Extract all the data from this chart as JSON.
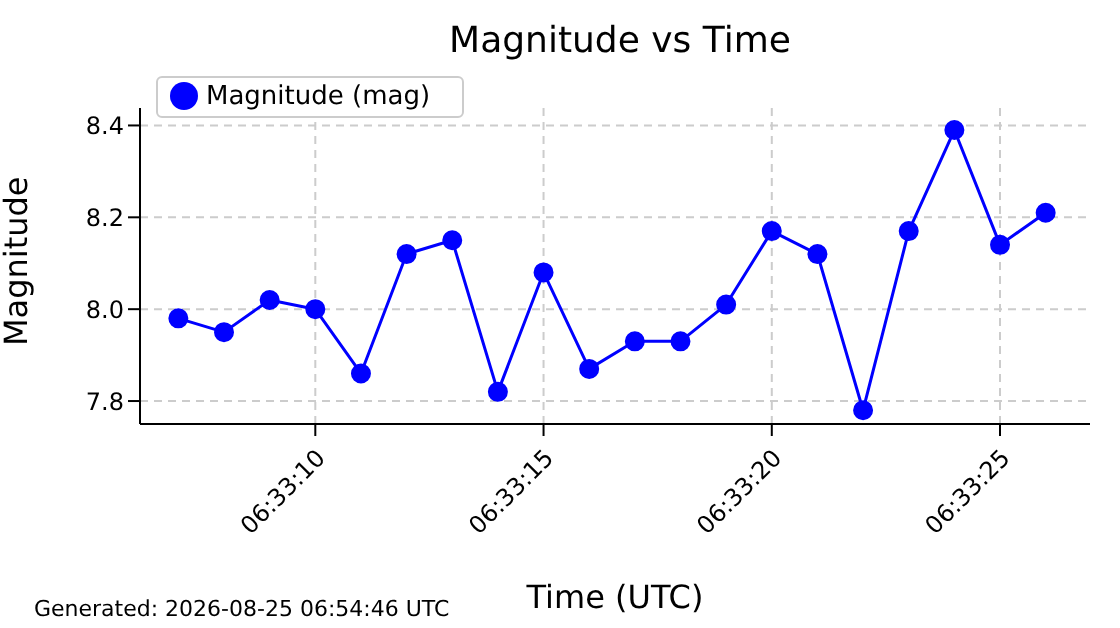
{
  "chart_data": {
    "type": "line",
    "title": "Magnitude vs Time",
    "xlabel": "Time (UTC)",
    "ylabel": "Magnitude",
    "x": [
      6.5519444,
      6.5522222,
      6.5525,
      6.5527778,
      6.5530556,
      6.5533333,
      6.5536111,
      6.5538889,
      6.5541667,
      6.5544444,
      6.5547222,
      6.555,
      6.5552778,
      6.5555556,
      6.5558333,
      6.5561111,
      6.5563889,
      6.5566667,
      6.5569444,
      6.5572222
    ],
    "series": [
      {
        "name": "Magnitude (mag)",
        "color": "#0000ff",
        "values": [
          7.98,
          7.95,
          8.02,
          8.0,
          7.86,
          8.12,
          8.15,
          7.82,
          8.08,
          7.87,
          7.93,
          7.93,
          8.01,
          8.17,
          8.12,
          7.78,
          8.17,
          8.39,
          8.14,
          8.21
        ]
      }
    ],
    "xlim": [
      6.551711,
      6.557492
    ],
    "xticks": [
      {
        "value": 6.5527778,
        "label": "06:33:10"
      },
      {
        "value": 6.5541667,
        "label": "06:33:15"
      },
      {
        "value": 6.5555556,
        "label": "06:33:20"
      },
      {
        "value": 6.5569444,
        "label": "06:33:25"
      }
    ],
    "ylim": [
      7.75,
      8.438
    ],
    "yticks": [
      {
        "value": 7.8,
        "label": "7.8"
      },
      {
        "value": 8,
        "label": "8.0"
      },
      {
        "value": 8.2,
        "label": "8.2"
      },
      {
        "value": 8.4,
        "label": "8.4"
      }
    ],
    "grid": true,
    "legend": "top left",
    "marker": "circle",
    "line_style": "solid",
    "annotations": [
      "Generated: 2026-08-25 06:54:46 UTC"
    ]
  }
}
